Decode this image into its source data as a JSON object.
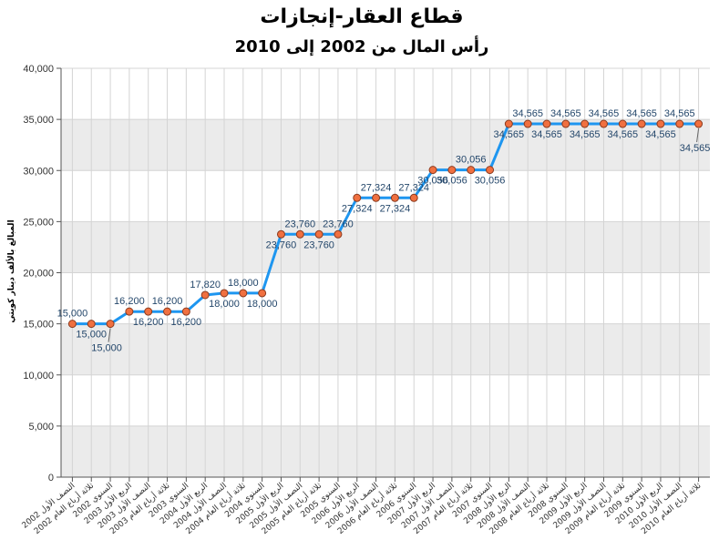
{
  "chart_data": {
    "type": "line",
    "title": "قطاع العقار-إنجازات",
    "subtitle": "رأس المال من 2002 إلى 2010",
    "xlabel": "",
    "ylabel": "المبالغ بالألف دينار كويتي",
    "ylim": [
      0,
      40000
    ],
    "yticks": [
      0,
      5000,
      10000,
      15000,
      20000,
      25000,
      30000,
      35000,
      40000
    ],
    "grid": true,
    "categories": [
      "النصف الأول 2002",
      "ثلاثة أرباع العام 2002",
      "السنوي 2002",
      "الربع الأول 2003",
      "النصف الأول 2003",
      "ثلاثة أرباع العام 2003",
      "السنوي 2003",
      "الربع الأول 2004",
      "النصف الأول 2004",
      "ثلاثة أرباع العام 2004",
      "السنوي 2004",
      "الربع الأول 2005",
      "النصف الأول 2005",
      "ثلاثة أرباع العام 2005",
      "السنوي 2005",
      "الربع الأول 2006",
      "النصف الأول 2006",
      "ثلاثة أرباع العام 2006",
      "السنوي 2006",
      "الربع الأول 2007",
      "النصف الأول 2007",
      "ثلاثة أرباع العام 2007",
      "السنوي 2007",
      "الربع الأول 2008",
      "النصف الأول 2008",
      "ثلاثة أرباع العام 2008",
      "السنوي 2008",
      "الربع الأول 2009",
      "النصف الأول 2009",
      "ثلاثة أرباع العام 2009",
      "السنوي 2009",
      "الربع الأول 2010",
      "النصف الأول 2010",
      "ثلاثة أرباع العام 2010"
    ],
    "series": [
      {
        "values": [
          15000,
          15000,
          15000,
          16200,
          16200,
          16200,
          16200,
          17820,
          18000,
          18000,
          18000,
          23760,
          23760,
          23760,
          23760,
          27324,
          27324,
          27324,
          27324,
          30056,
          30056,
          30056,
          30056,
          34565,
          34565,
          34565,
          34565,
          34565,
          34565,
          34565,
          34565,
          34565,
          34565,
          34565
        ],
        "data_labels": true
      }
    ],
    "colors": {
      "line": "#1e96f0",
      "marker": "#f07040",
      "marker_edge": "#8b3a1e",
      "data_label": "#24476b",
      "band": "#ebebeb",
      "grid": "#d4d4d4",
      "axis": "#555555"
    }
  }
}
